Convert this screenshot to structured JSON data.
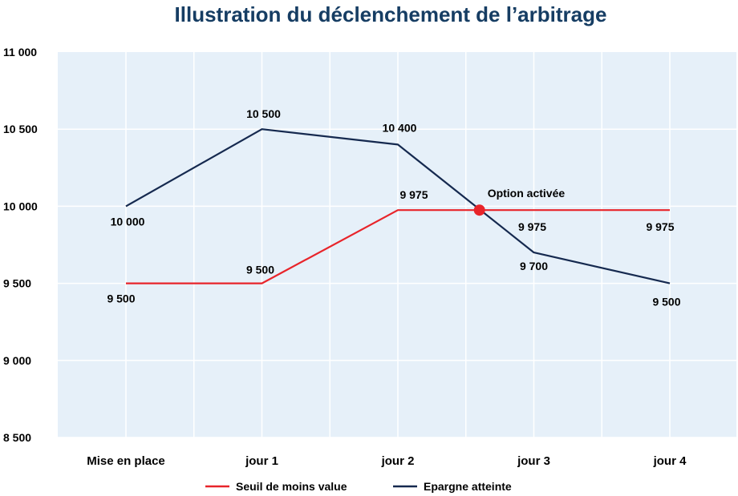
{
  "chart_data": {
    "type": "line",
    "title": "Illustration du déclenchement de l’arbitrage",
    "xlabel": "",
    "ylabel": "",
    "categories": [
      "Mise en place",
      "jour 1",
      "jour 2",
      "jour 3",
      "jour 4"
    ],
    "ylim": [
      8500,
      11000
    ],
    "y_ticks": [
      8500,
      9000,
      9500,
      10000,
      10500,
      11000
    ],
    "y_tick_labels": [
      "8 500",
      "9 000",
      "9 500",
      "10 000",
      "10 500",
      "11 000"
    ],
    "grid": true,
    "legend_position": "bottom",
    "series": [
      {
        "name": "Seuil de moins value",
        "color": "#e8242a",
        "x": [
          0,
          1,
          2,
          2.6,
          3,
          4
        ],
        "values": [
          9500,
          9500,
          9975,
          9975,
          9975,
          9975
        ],
        "labels": [
          {
            "index": 0,
            "text": "9 500"
          },
          {
            "index": 1,
            "text": "9 500"
          },
          {
            "index": 2,
            "text": "9 975"
          },
          {
            "index": 4,
            "text": "9 975"
          },
          {
            "index": 5,
            "text": "9 975"
          }
        ]
      },
      {
        "name": "Epargne atteinte",
        "color": "#15294f",
        "x": [
          0,
          1,
          2,
          3,
          4
        ],
        "values": [
          10000,
          10500,
          10400,
          9700,
          9500
        ],
        "labels": [
          {
            "index": 0,
            "text": "10 000"
          },
          {
            "index": 1,
            "text": "10 500"
          },
          {
            "index": 2,
            "text": "10 400"
          },
          {
            "index": 3,
            "text": "9 700"
          },
          {
            "index": 4,
            "text": "9 500"
          }
        ]
      }
    ],
    "annotations": [
      {
        "text": "Option activée",
        "x": 2.6,
        "y": 9975,
        "marker_color": "#e8242a"
      }
    ]
  }
}
